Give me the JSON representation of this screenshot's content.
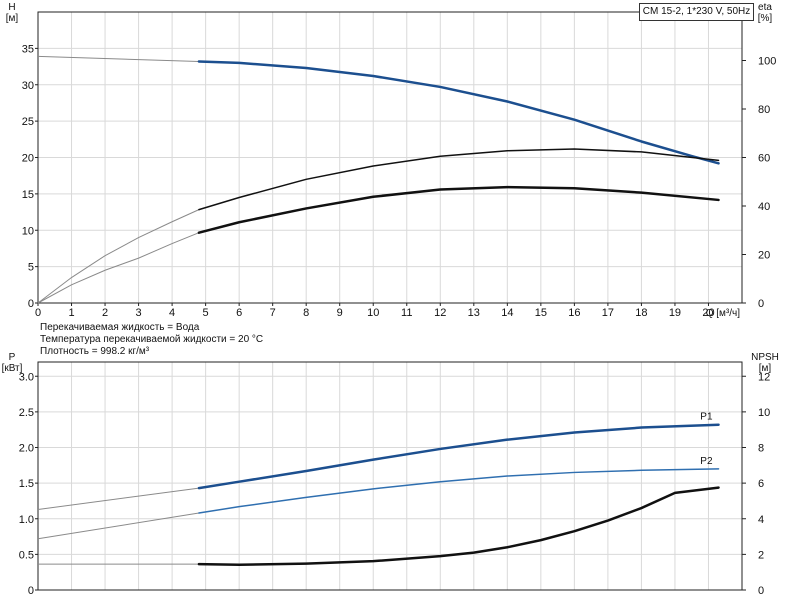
{
  "header": {
    "pump": "CM 15-2, 1*230 V, 50Hz"
  },
  "info": [
    "Перекачиваемая жидкость = Вода",
    "Температура перекачиваемой жидкости = 20 °C",
    "Плотность = 998.2 кг/м³"
  ],
  "colors": {
    "blue_dark": "#1c4f8f",
    "blue_light": "#2f6fb0",
    "black": "#111111",
    "grid": "#d9d9d9"
  },
  "chart_data": [
    {
      "type": "line",
      "x_label": "Q [м³/ч]",
      "xlim": [
        0,
        21
      ],
      "x_ticks": [
        0,
        1,
        2,
        3,
        4,
        5,
        6,
        7,
        8,
        9,
        10,
        11,
        12,
        13,
        14,
        15,
        16,
        17,
        18,
        19,
        20
      ],
      "y_left": {
        "label_top": "H",
        "label_unit": "[м]",
        "ylim": [
          0,
          40
        ],
        "ticks": [
          0,
          5,
          10,
          15,
          20,
          25,
          30,
          35
        ]
      },
      "y_right": {
        "label_top": "eta",
        "label_unit": "[%]",
        "ylim": [
          0,
          120
        ],
        "ticks": [
          0,
          20,
          40,
          60,
          80,
          100
        ]
      },
      "grid": true,
      "series": [
        {
          "axis": "left",
          "color": "#1c4f8f",
          "width": 2.5,
          "extrapolated_to": 4.8,
          "x": [
            0,
            4.8,
            6,
            8,
            10,
            12,
            14,
            16,
            18,
            19.5,
            20.3
          ],
          "y": [
            33.9,
            33.2,
            33.0,
            32.3,
            31.2,
            29.7,
            27.7,
            25.2,
            22.2,
            20.2,
            19.2
          ]
        },
        {
          "axis": "right",
          "color": "#111111",
          "width": 1.5,
          "extrapolated_to": 4.8,
          "x": [
            0,
            1,
            2,
            3,
            4,
            4.8,
            6,
            8,
            10,
            12,
            14,
            16,
            18,
            20.3
          ],
          "y": [
            0,
            10.5,
            19.5,
            27.0,
            33.5,
            38.5,
            43.5,
            51.0,
            56.5,
            60.5,
            62.8,
            63.5,
            62.3,
            58.8
          ]
        },
        {
          "axis": "right",
          "color": "#111111",
          "width": 2.5,
          "extrapolated_to": 4.8,
          "x": [
            0,
            1,
            2,
            3,
            4,
            4.8,
            6,
            8,
            10,
            12,
            14,
            16,
            18,
            20.3
          ],
          "y": [
            0,
            7.5,
            13.5,
            18.5,
            24.5,
            29.0,
            33.3,
            39.0,
            43.8,
            46.8,
            47.8,
            47.3,
            45.5,
            42.5
          ]
        }
      ]
    },
    {
      "type": "line",
      "xlim": [
        0,
        21
      ],
      "y_left": {
        "label_top": "P",
        "label_unit": "[кВт]",
        "ylim": [
          0,
          3.2
        ],
        "ticks": [
          0,
          0.5,
          1.0,
          1.5,
          2.0,
          2.5,
          3.0
        ],
        "tick_labels": [
          "0",
          "0.5",
          "1.0",
          "1.5",
          "2.0",
          "2.5",
          "3.0"
        ]
      },
      "y_right": {
        "label_top": "NPSH",
        "label_unit": "[м]",
        "ylim": [
          0,
          12.8
        ],
        "ticks": [
          0,
          2,
          4,
          6,
          8,
          10,
          12
        ]
      },
      "grid": true,
      "series": [
        {
          "name": "P1",
          "axis": "left",
          "color": "#1c4f8f",
          "width": 2.5,
          "extrapolated_to": 4.8,
          "x": [
            0,
            4.8,
            6,
            8,
            10,
            12,
            14,
            16,
            18,
            20.3
          ],
          "y": [
            1.13,
            1.43,
            1.52,
            1.67,
            1.83,
            1.98,
            2.11,
            2.21,
            2.28,
            2.32
          ]
        },
        {
          "name": "P2",
          "axis": "left",
          "color": "#2f6fb0",
          "width": 1.5,
          "extrapolated_to": 4.8,
          "x": [
            0,
            4.8,
            6,
            8,
            10,
            12,
            14,
            16,
            18,
            20.3
          ],
          "y": [
            0.72,
            1.08,
            1.17,
            1.3,
            1.42,
            1.52,
            1.6,
            1.65,
            1.68,
            1.7
          ]
        },
        {
          "axis": "right",
          "color": "#111111",
          "width": 2.5,
          "extrapolated_to": 4.8,
          "x": [
            0,
            4.8,
            6,
            8,
            10,
            12,
            13,
            14,
            15,
            16,
            17,
            18,
            19,
            20.3
          ],
          "y": [
            1.45,
            1.45,
            1.42,
            1.48,
            1.62,
            1.9,
            2.1,
            2.4,
            2.8,
            3.3,
            3.9,
            4.6,
            5.45,
            5.75
          ]
        }
      ]
    }
  ]
}
